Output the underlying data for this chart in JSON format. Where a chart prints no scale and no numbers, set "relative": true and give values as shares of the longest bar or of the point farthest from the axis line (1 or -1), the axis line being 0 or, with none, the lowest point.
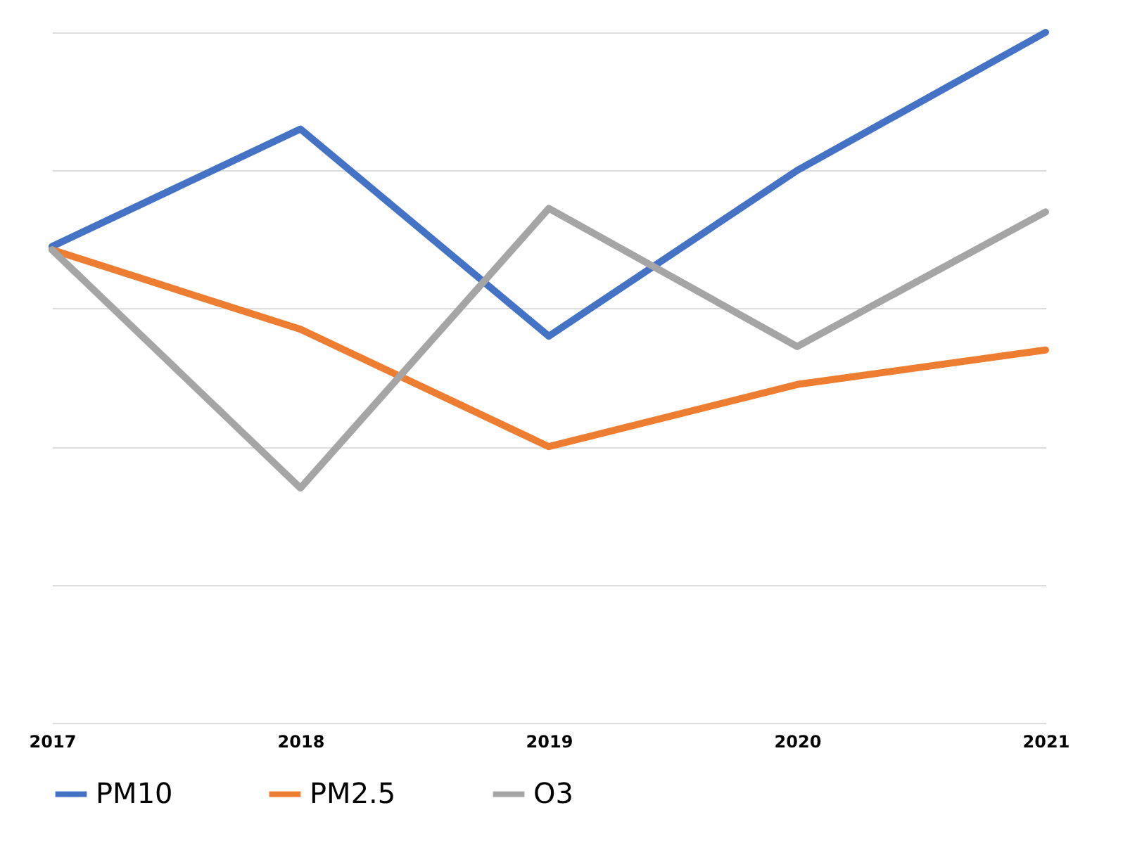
{
  "chart_data": {
    "type": "line",
    "relative": true,
    "categories": [
      "2017",
      "2018",
      "2019",
      "2020",
      "2021"
    ],
    "series": [
      {
        "name": "PM10",
        "color": "#4472c4",
        "values": [
          0.69,
          0.86,
          0.56,
          0.8,
          1
        ]
      },
      {
        "name": "PM2.5",
        "color": "#ed7d31",
        "values": [
          0.685,
          0.57,
          0.4,
          0.49,
          0.54
        ]
      },
      {
        "name": "O3",
        "color": "#a5a5a5",
        "values": [
          0.685,
          0.34,
          0.745,
          0.545,
          0.74
        ]
      }
    ],
    "grid": "y",
    "legend": "bottom",
    "line_style": "solid"
  }
}
